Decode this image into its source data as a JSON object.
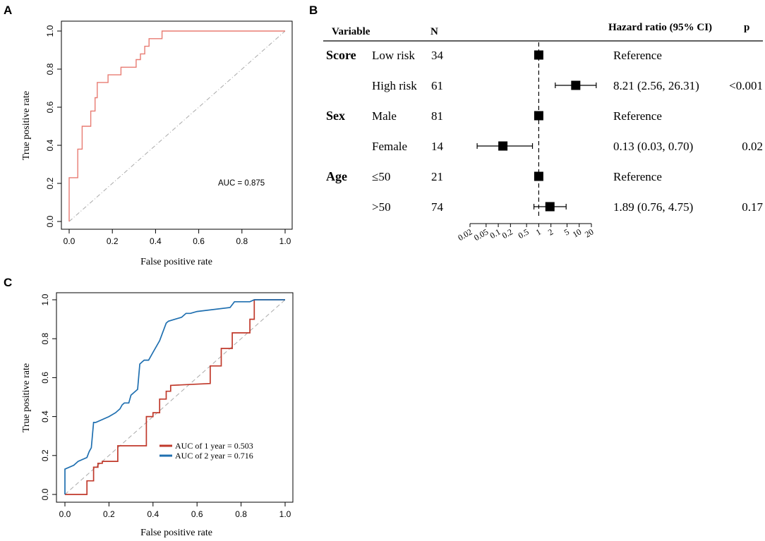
{
  "panel_labels": {
    "a": "A",
    "b": "B",
    "c": "C"
  },
  "chart_data": [
    {
      "id": "A",
      "type": "line",
      "title": "",
      "xlabel": "False positive rate",
      "ylabel": "True positive rate",
      "xlim": [
        0,
        1
      ],
      "ylim": [
        0,
        1
      ],
      "xticks": [
        "0.0",
        "0.2",
        "0.4",
        "0.6",
        "0.8",
        "1.0"
      ],
      "yticks": [
        "0.0",
        "0.2",
        "0.4",
        "0.6",
        "0.8",
        "1.0"
      ],
      "annotation": "AUC = 0.875",
      "colors": {
        "roc": "#e87b72",
        "reference": "#aaaaaa"
      },
      "series": [
        {
          "name": "ROC",
          "x": [
            0,
            0,
            0.02,
            0.02,
            0.04,
            0.04,
            0.06,
            0.06,
            0.1,
            0.1,
            0.12,
            0.12,
            0.13,
            0.13,
            0.15,
            0.15,
            0.18,
            0.18,
            0.2,
            0.2,
            0.24,
            0.24,
            0.31,
            0.31,
            0.33,
            0.33,
            0.35,
            0.35,
            0.37,
            0.37,
            0.4,
            0.4,
            0.43,
            0.43,
            1
          ],
          "y": [
            0,
            0.23,
            0.23,
            0.23,
            0.23,
            0.38,
            0.38,
            0.5,
            0.5,
            0.58,
            0.58,
            0.65,
            0.65,
            0.73,
            0.73,
            0.73,
            0.73,
            0.77,
            0.77,
            0.77,
            0.77,
            0.81,
            0.81,
            0.85,
            0.85,
            0.88,
            0.88,
            0.92,
            0.92,
            0.96,
            0.96,
            0.96,
            0.96,
            1,
            1
          ]
        }
      ]
    },
    {
      "id": "B",
      "type": "forest",
      "headers": {
        "variable": "Variable",
        "n": "N",
        "hr": "Hazard ratio (95% CI)",
        "p": "p"
      },
      "x_scale": "log",
      "x_ticks": [
        "0.02",
        "0.05",
        "0.1",
        "0.2",
        "0.5",
        "1",
        "2",
        "5",
        "10",
        "20"
      ],
      "x_tick_values": [
        0.02,
        0.05,
        0.1,
        0.2,
        0.5,
        1,
        2,
        5,
        10,
        20
      ],
      "reference_line": 1,
      "rows": [
        {
          "variable": "Score",
          "level": "Low risk",
          "n": "34",
          "hr": 1,
          "lo": null,
          "hi": null,
          "text": "Reference",
          "p": ""
        },
        {
          "variable": "",
          "level": "High risk",
          "n": "61",
          "hr": 8.21,
          "lo": 2.56,
          "hi": 26.31,
          "text": "8.21 (2.56, 26.31)",
          "p": "<0.001"
        },
        {
          "variable": "Sex",
          "level": "Male",
          "n": "81",
          "hr": 1,
          "lo": null,
          "hi": null,
          "text": "Reference",
          "p": ""
        },
        {
          "variable": "",
          "level": "Female",
          "n": "14",
          "hr": 0.13,
          "lo": 0.03,
          "hi": 0.7,
          "text": "0.13 (0.03, 0.70)",
          "p": "0.02"
        },
        {
          "variable": "Age",
          "level": "≤50",
          "n": "21",
          "hr": 1,
          "lo": null,
          "hi": null,
          "text": "Reference",
          "p": ""
        },
        {
          "variable": "",
          "level": ">50",
          "n": "74",
          "hr": 1.89,
          "lo": 0.76,
          "hi": 4.75,
          "text": "1.89 (0.76, 4.75)",
          "p": "0.17"
        }
      ]
    },
    {
      "id": "C",
      "type": "line",
      "title": "",
      "xlabel": "False positive rate",
      "ylabel": "True positive rate",
      "xlim": [
        0,
        1
      ],
      "ylim": [
        0,
        1
      ],
      "xticks": [
        "0.0",
        "0.2",
        "0.4",
        "0.6",
        "0.8",
        "1.0"
      ],
      "yticks": [
        "0.0",
        "0.2",
        "0.4",
        "0.6",
        "0.8",
        "1.0"
      ],
      "legend_position": "center-right",
      "colors": {
        "one_year": "#c0392b",
        "two_year": "#1f6fb0",
        "reference": "#aaaaaa"
      },
      "series": [
        {
          "name": "AUC of 1 year = 0.503",
          "color_key": "one_year",
          "x": [
            0,
            0.1,
            0.1,
            0.13,
            0.13,
            0.15,
            0.15,
            0.17,
            0.17,
            0.24,
            0.24,
            0.37,
            0.37,
            0.4,
            0.4,
            0.43,
            0.43,
            0.46,
            0.46,
            0.48,
            0.48,
            0.66,
            0.66,
            0.71,
            0.71,
            0.76,
            0.76,
            0.84,
            0.84,
            0.86,
            0.86,
            1
          ],
          "y": [
            0,
            0,
            0.07,
            0.07,
            0.14,
            0.14,
            0.16,
            0.16,
            0.17,
            0.17,
            0.25,
            0.25,
            0.4,
            0.4,
            0.42,
            0.42,
            0.49,
            0.49,
            0.53,
            0.53,
            0.56,
            0.57,
            0.66,
            0.66,
            0.75,
            0.75,
            0.83,
            0.83,
            0.9,
            0.9,
            1.0,
            1.0
          ]
        },
        {
          "name": "AUC of 2 year = 0.716",
          "color_key": "two_year",
          "x": [
            0,
            0,
            0.04,
            0.06,
            0.1,
            0.11,
            0.12,
            0.13,
            0.14,
            0.2,
            0.23,
            0.25,
            0.26,
            0.27,
            0.29,
            0.3,
            0.33,
            0.34,
            0.35,
            0.36,
            0.38,
            0.4,
            0.43,
            0.44,
            0.46,
            0.47,
            0.5,
            0.53,
            0.55,
            0.57,
            0.6,
            0.75,
            0.77,
            0.84,
            0.86,
            0.88,
            1
          ],
          "y": [
            0,
            0.13,
            0.15,
            0.17,
            0.19,
            0.22,
            0.24,
            0.37,
            0.37,
            0.4,
            0.42,
            0.44,
            0.46,
            0.47,
            0.47,
            0.51,
            0.54,
            0.67,
            0.68,
            0.69,
            0.69,
            0.73,
            0.79,
            0.82,
            0.88,
            0.89,
            0.9,
            0.91,
            0.93,
            0.93,
            0.94,
            0.96,
            0.99,
            0.99,
            1.0,
            1.0,
            1.0
          ]
        }
      ]
    }
  ]
}
